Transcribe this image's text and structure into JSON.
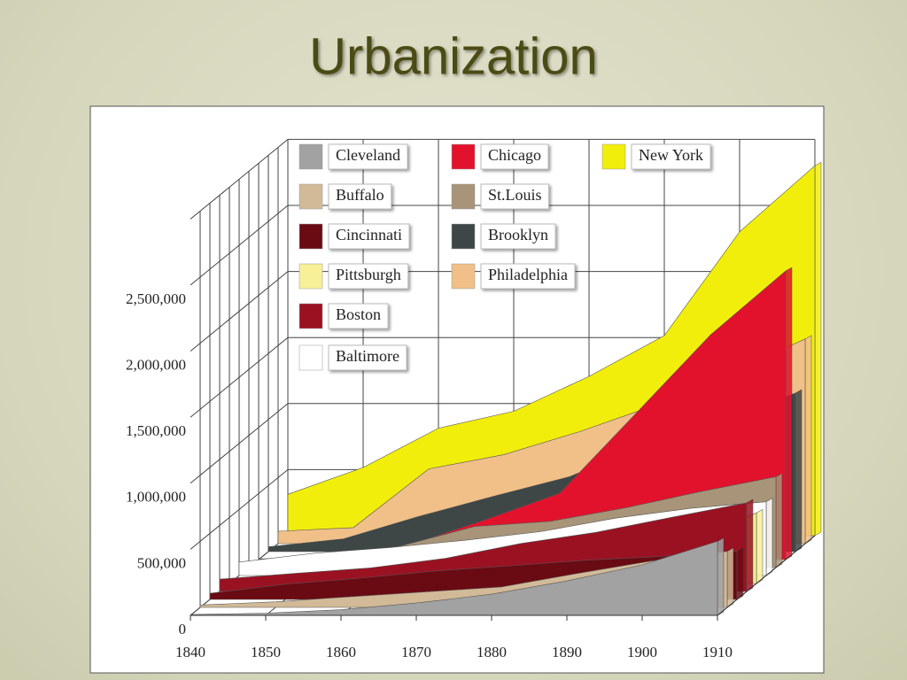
{
  "chart_data": {
    "type": "area",
    "title": "Urbanization",
    "x": [
      1840,
      1850,
      1860,
      1870,
      1880,
      1890,
      1900,
      1910
    ],
    "xlim": [
      1840,
      1910
    ],
    "xticks": [
      1840,
      1850,
      1860,
      1870,
      1880,
      1890,
      1900,
      1910
    ],
    "ylim": [
      0,
      3000000
    ],
    "yticks": [
      0,
      {
        "value": 500000,
        "label": "500,000"
      },
      {
        "value": 1000000,
        "label": "1,000,000"
      },
      {
        "value": 1500000,
        "label": "1,500,000"
      },
      {
        "value": 2000000,
        "label": "2,000,000"
      },
      {
        "value": 2500000,
        "label": "2,500,000"
      }
    ],
    "grid": true,
    "series": [
      {
        "name": "New York",
        "color": "#f2ee0c",
        "values": [
          313000,
          516000,
          814000,
          942000,
          1206000,
          1515000,
          2300000,
          2800000
        ]
      },
      {
        "name": "Philadelphia",
        "color": "#f0c088",
        "values": [
          94000,
          121000,
          566000,
          674000,
          847000,
          1047000,
          1294000,
          1549000
        ]
      },
      {
        "name": "Brooklyn",
        "color": "#3e4646",
        "values": [
          36000,
          97000,
          267000,
          420000,
          567000,
          806000,
          1000000,
          1200000
        ]
      },
      {
        "name": "Chicago",
        "color": "#e3122c",
        "values": [
          4500,
          30000,
          112000,
          299000,
          503000,
          1100000,
          1700000,
          2185000
        ]
      },
      {
        "name": "St.Louis",
        "color": "#a89478",
        "values": [
          16000,
          78000,
          161000,
          311000,
          350000,
          452000,
          575000,
          687000
        ]
      },
      {
        "name": "Baltimore",
        "color": "#ffffff",
        "values": [
          102000,
          169000,
          212000,
          267000,
          332000,
          434000,
          509000,
          558000
        ]
      },
      {
        "name": "Pittsburgh",
        "color": "#f8f098",
        "values": [
          21000,
          47000,
          49000,
          86000,
          156000,
          239000,
          322000,
          534000
        ]
      },
      {
        "name": "Boston",
        "color": "#9a1222",
        "values": [
          93000,
          137000,
          178000,
          251000,
          363000,
          448000,
          561000,
          671000
        ]
      },
      {
        "name": "Cincinnati",
        "color": "#6a0a12",
        "values": [
          46000,
          115000,
          161000,
          216000,
          255000,
          297000,
          326000,
          364000
        ]
      },
      {
        "name": "Buffalo",
        "color": "#d2ba98",
        "values": [
          18000,
          42000,
          81000,
          118000,
          155000,
          256000,
          352000,
          424000
        ]
      },
      {
        "name": "Cleveland",
        "color": "#a2a2a2",
        "values": [
          6000,
          17000,
          43000,
          93000,
          160000,
          261000,
          382000,
          560000
        ]
      }
    ]
  }
}
